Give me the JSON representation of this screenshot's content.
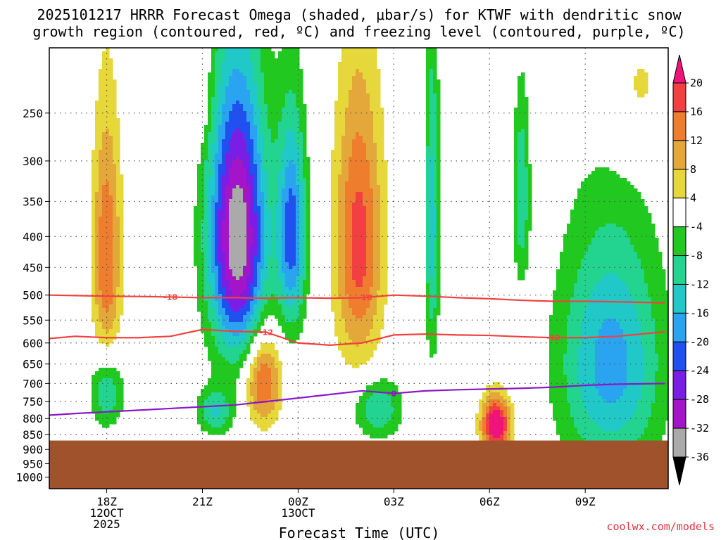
{
  "chart_data": {
    "type": "heatmap",
    "title_line1": "2025101217 HRRR Forecast Omega (shaded, μbar/s) for KTWF with dendritic snow",
    "title_line2": "growth region (contoured, red, ºC) and freezing level (contoured, purple, ºC)",
    "xlabel": "Forecast Time (UTC)",
    "credit": "coolwx.com/models",
    "yaxis": {
      "scale": "log",
      "range_hpa": [
        195,
        1045
      ],
      "ticks": [
        "250",
        "300",
        "350",
        "400",
        "450",
        "500",
        "550",
        "600",
        "650",
        "700",
        "750",
        "800",
        "850",
        "900",
        "950",
        "1000"
      ]
    },
    "xaxis": {
      "range_hours": [
        16.2,
        11.6
      ],
      "ticks": [
        {
          "hour": 18,
          "label": "18Z",
          "sub1": "12OCT",
          "sub2": "2025"
        },
        {
          "hour": 21,
          "label": "21Z",
          "sub1": "",
          "sub2": ""
        },
        {
          "hour": 24,
          "label": "00Z",
          "sub1": "13OCT",
          "sub2": ""
        },
        {
          "hour": 27,
          "label": "03Z",
          "sub1": "",
          "sub2": ""
        },
        {
          "hour": 30,
          "label": "06Z",
          "sub1": "",
          "sub2": ""
        },
        {
          "hour": 33,
          "label": "09Z",
          "sub1": "",
          "sub2": ""
        }
      ]
    },
    "colorbar": {
      "labels": [
        "20",
        "16",
        "12",
        "8",
        "4",
        "-4",
        "-8",
        "-12",
        "-16",
        "-20",
        "-24",
        "-28",
        "-32",
        "-36"
      ],
      "colors": [
        "#f0287a",
        "#f24040",
        "#ee7e2e",
        "#e4a83a",
        "#e6d73a",
        "#ffffff",
        "#20c820",
        "#22d490",
        "#20c8c8",
        "#2aa4f0",
        "#2050f0",
        "#7a1ee6",
        "#a414c8",
        "#aaaaaa"
      ],
      "bins": [
        {
          "range": "> 20",
          "color": "#f0147a"
        },
        {
          "range": "16 to 20",
          "color": "#f24040"
        },
        {
          "range": "12 to 16",
          "color": "#ee7e2e"
        },
        {
          "range": "8 to 12",
          "color": "#e4a83a"
        },
        {
          "range": "4 to 8",
          "color": "#e6d73a"
        },
        {
          "range": "-4 to 4",
          "color": "#ffffff"
        },
        {
          "range": "-8 to -4",
          "color": "#20c820"
        },
        {
          "range": "-12 to -8",
          "color": "#22d490"
        },
        {
          "range": "-16 to -12",
          "color": "#20c8c8"
        },
        {
          "range": "-20 to -16",
          "color": "#2aa4f0"
        },
        {
          "range": "-24 to -20",
          "color": "#2050f0"
        },
        {
          "range": "-28 to -24",
          "color": "#7a1ee6"
        },
        {
          "range": "-32 to -28",
          "color": "#a414c8"
        },
        {
          "range": "-36 to -32",
          "color": "#aaaaaa"
        },
        {
          "range": "< -36",
          "color": "#000000"
        }
      ]
    },
    "terrain": {
      "color": "#a0522d",
      "top_hpa": 870
    },
    "omega_blobs": [
      {
        "name": "sinking-west",
        "center": [
          18.0,
          430
        ],
        "radius": [
          0.45,
          200
        ],
        "peak": 16
      },
      {
        "name": "rising-main",
        "center": [
          22.1,
          400
        ],
        "radius": [
          0.9,
          210
        ],
        "peak": -36
      },
      {
        "name": "rising-secondary",
        "center": [
          23.8,
          395
        ],
        "radius": [
          0.45,
          160
        ],
        "peak": -22
      },
      {
        "name": "sinking-central",
        "center": [
          25.9,
          410
        ],
        "radius": [
          0.75,
          220
        ],
        "peak": 18
      },
      {
        "name": "rising-narrow",
        "center": [
          28.2,
          380
        ],
        "radius": [
          0.22,
          230
        ],
        "peak": -14
      },
      {
        "name": "rising-upper-right",
        "center": [
          31.0,
          340
        ],
        "radius": [
          0.25,
          120
        ],
        "peak": -12
      },
      {
        "name": "sinking-lower",
        "center": [
          22.9,
          690
        ],
        "radius": [
          0.55,
          120
        ],
        "peak": 18
      },
      {
        "name": "rising-lower-left",
        "center": [
          18.0,
          720
        ],
        "radius": [
          0.5,
          100
        ],
        "peak": -13
      },
      {
        "name": "rising-lower-mid",
        "center": [
          21.4,
          780
        ],
        "radius": [
          0.55,
          70
        ],
        "peak": -12
      },
      {
        "name": "rising-lower-center",
        "center": [
          26.5,
          770
        ],
        "radius": [
          0.75,
          90
        ],
        "peak": -12
      },
      {
        "name": "sinking-low-right",
        "center": [
          30.2,
          820
        ],
        "radius": [
          0.45,
          90
        ],
        "peak": 26
      },
      {
        "name": "rising-right",
        "center": [
          33.8,
          650
        ],
        "radius": [
          1.6,
          300
        ],
        "peak": -18
      }
    ],
    "contours": {
      "dgz_minus18": {
        "label": "-18",
        "color": "#f24040",
        "x": [
          16.2,
          18,
          19.5,
          21,
          22,
          23,
          24,
          25,
          26,
          27,
          28,
          29,
          30,
          31,
          32,
          33,
          34,
          35.5
        ],
        "p": [
          500,
          502,
          503,
          505,
          505,
          506,
          505,
          506,
          505,
          500,
          502,
          505,
          507,
          510,
          512,
          512,
          513,
          515
        ]
      },
      "dgz_minus12": {
        "label": "-12",
        "color": "#f24040",
        "x": [
          16.2,
          17,
          18,
          19,
          20,
          21,
          22,
          23,
          24,
          25,
          26,
          27,
          28,
          29,
          30,
          31,
          32,
          33,
          34,
          35.5
        ],
        "p": [
          590,
          585,
          588,
          588,
          585,
          570,
          574,
          576,
          600,
          605,
          600,
          582,
          580,
          582,
          583,
          586,
          588,
          588,
          585,
          575
        ]
      },
      "freezing_level": {
        "label": "0",
        "color": "#8a18c8",
        "x": [
          16.2,
          17,
          18,
          19,
          20,
          21,
          22,
          23,
          24,
          25,
          26,
          27,
          28,
          29,
          30,
          31,
          32,
          33,
          34,
          35.5
        ],
        "p": [
          790,
          785,
          780,
          775,
          770,
          765,
          760,
          750,
          740,
          730,
          720,
          727,
          720,
          717,
          715,
          713,
          710,
          705,
          702,
          700
        ]
      }
    }
  }
}
